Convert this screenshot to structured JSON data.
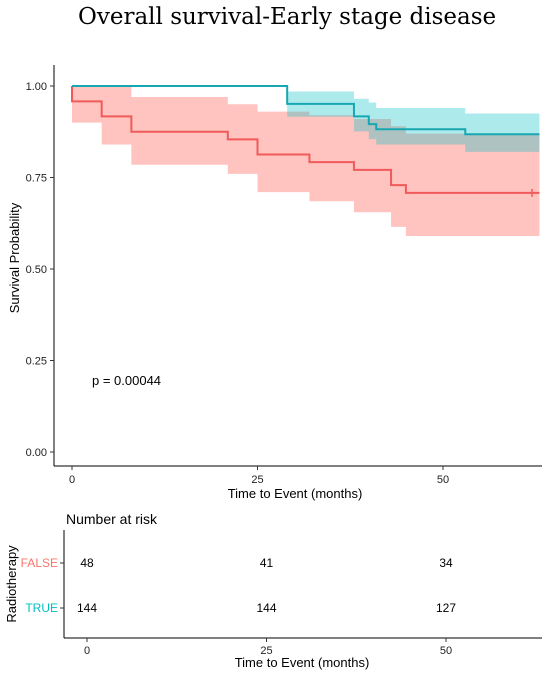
{
  "title": "Overall survival-Early stage disease",
  "chart_data": {
    "type": "line",
    "subtype": "kaplan-meier",
    "title": "Overall survival-Early stage disease",
    "xlabel": "Time to Event (months)",
    "ylabel": "Survival Probability",
    "xlim": [
      0,
      63
    ],
    "ylim": [
      0,
      1
    ],
    "x_ticks": [
      0,
      25,
      50
    ],
    "y_ticks": [
      0.0,
      0.25,
      0.5,
      0.75,
      1.0
    ],
    "y_tick_labels": [
      "0.00",
      "0.25",
      "0.50",
      "0.75",
      "1.00"
    ],
    "grid": false,
    "annotation": "p = 0.00044",
    "series": [
      {
        "key": "FALSE",
        "color": "#F8766D",
        "steps": [
          {
            "x": 0,
            "y": 1.0
          },
          {
            "x": 0,
            "y": 0.958
          },
          {
            "x": 4,
            "y": 0.917
          },
          {
            "x": 8,
            "y": 0.875
          },
          {
            "x": 21,
            "y": 0.854
          },
          {
            "x": 25,
            "y": 0.813
          },
          {
            "x": 32,
            "y": 0.792
          },
          {
            "x": 38,
            "y": 0.771
          },
          {
            "x": 43,
            "y": 0.729
          },
          {
            "x": 45,
            "y": 0.708
          },
          {
            "x": 63,
            "y": 0.708
          }
        ],
        "ci_upper": [
          1.0,
          1.0,
          1.0,
          0.97,
          0.95,
          0.93,
          0.92,
          0.91,
          0.89,
          0.87,
          0.85
        ],
        "ci_lower": [
          1.0,
          0.9,
          0.84,
          0.785,
          0.76,
          0.71,
          0.685,
          0.655,
          0.615,
          0.59,
          0.59
        ],
        "censor_marks": [
          62
        ]
      },
      {
        "key": "TRUE",
        "color": "#00BFC4",
        "steps": [
          {
            "x": 0,
            "y": 1.0
          },
          {
            "x": 29,
            "y": 0.951
          },
          {
            "x": 38,
            "y": 0.917
          },
          {
            "x": 40,
            "y": 0.896
          },
          {
            "x": 41,
            "y": 0.882
          },
          {
            "x": 53,
            "y": 0.868
          },
          {
            "x": 63,
            "y": 0.868
          }
        ],
        "ci_upper": [
          1.0,
          0.985,
          0.965,
          0.955,
          0.94,
          0.925,
          0.925
        ],
        "ci_lower": [
          1.0,
          0.916,
          0.876,
          0.855,
          0.84,
          0.82,
          0.82
        ]
      }
    ],
    "risk_table": {
      "title": "Number at risk",
      "ylabel": "Radiotherapy",
      "xlabel": "Time to Event (months)",
      "rows": [
        {
          "label": "FALSE",
          "color": "#F8766D",
          "values": [
            "48",
            "41",
            "34"
          ]
        },
        {
          "label": "TRUE",
          "color": "#00BFC4",
          "values": [
            "144",
            "144",
            "127"
          ]
        }
      ]
    }
  }
}
